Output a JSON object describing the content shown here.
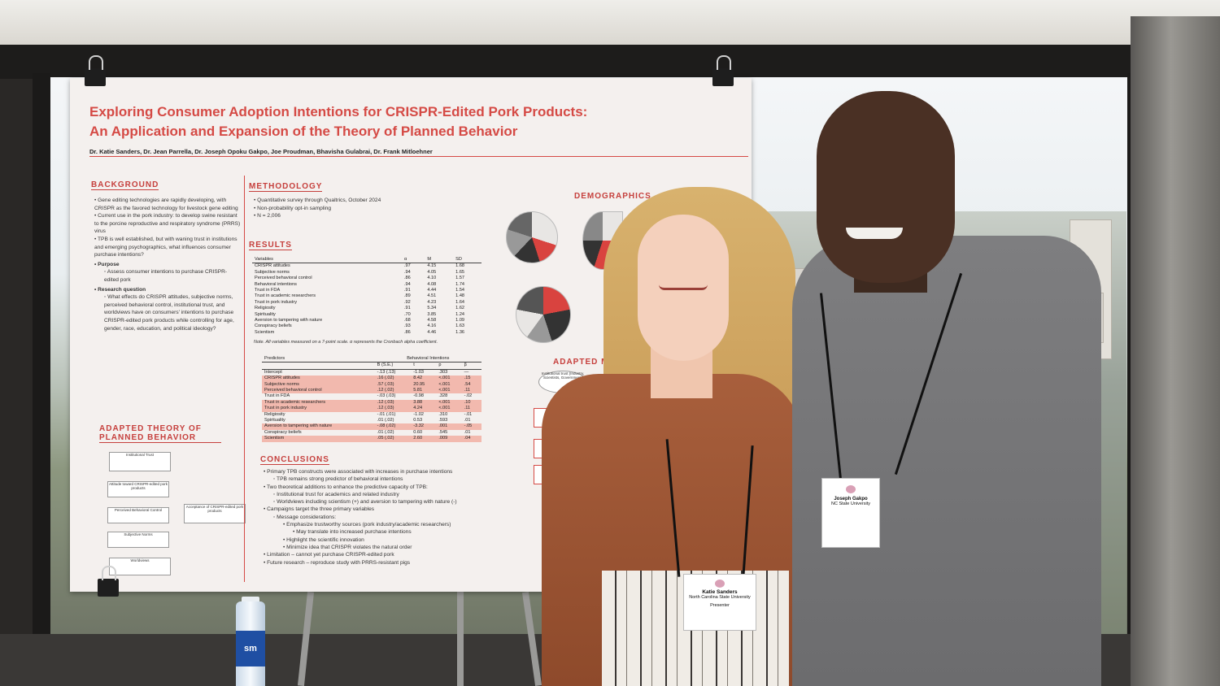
{
  "poster": {
    "title_line1": "Exploring Consumer Adoption Intentions for CRISPR-Edited Pork Products:",
    "title_line2": "An Application and Expansion of the Theory of Planned Behavior",
    "authors": "Dr. Katie Sanders, Dr. Jean Parrella, Dr. Joseph Opoku Gakpo, Joe Proudman, Bhavisha Gulabrai, Dr. Frank Mitloehner",
    "background": {
      "heading": "BACKGROUND",
      "b1": "• Gene editing technologies are rapidly developing, with CRISPR as the favored technology for livestock gene editing",
      "b2": "• Current use in the pork industry: to develop swine resistant to the porcine reproductive and respiratory syndrome (PRRS) virus",
      "b3": "• TPB is well established, but with waning trust in institutions and emerging psychographics, what influences consumer purchase intentions?",
      "purpose_label": "• Purpose",
      "purpose": "◦ Assess consumer intentions to purchase CRISPR-edited pork",
      "rq_label": "• Research question",
      "rq": "◦ What effects do CRISPR attitudes, subjective norms, perceived behavioral control, institutional trust, and worldviews have on consumers' intentions to purchase CRISPR-edited pork products while controlling for age, gender, race, education, and political ideology?"
    },
    "model_heading": "ADAPTED THEORY OF PLANNED BEHAVIOR",
    "model_boxes": [
      "Institutional Trust",
      "Attitude toward CRISPR-edited pork products",
      "Perceived Behavioral Control",
      "Subjective Norms",
      "Worldviews",
      "Acceptance of CRISPR-edited pork products"
    ],
    "methodology": {
      "heading": "METHODOLOGY",
      "b1": "• Quantitative survey through Qualtrics, October 2024",
      "b2": "• Non-probability opt-in sampling",
      "b3": "• N = 2,006"
    },
    "results_heading": "RESULTS",
    "table1": {
      "headers": [
        "Variables",
        "α",
        "M",
        "SD"
      ],
      "rows": [
        [
          "CRISPR attitudes",
          ".97",
          "4.15",
          "1.68"
        ],
        [
          "Subjective norms",
          ".94",
          "4.05",
          "1.65"
        ],
        [
          "Perceived behavioral control",
          ".86",
          "4.10",
          "1.57"
        ],
        [
          "Behavioral intentions",
          ".94",
          "4.08",
          "1.74"
        ],
        [
          "Trust in FDA",
          ".91",
          "4.44",
          "1.54"
        ],
        [
          "Trust in academic researchers",
          ".89",
          "4.51",
          "1.48"
        ],
        [
          "Trust in pork industry",
          ".92",
          "4.23",
          "1.64"
        ],
        [
          "Religiosity",
          ".91",
          "5.34",
          "1.62"
        ],
        [
          "Spirituality",
          ".70",
          "3.85",
          "1.24"
        ],
        [
          "Aversion to tampering with nature",
          ".68",
          "4.58",
          "1.09"
        ],
        [
          "Conspiracy beliefs",
          ".93",
          "4.16",
          "1.63"
        ],
        [
          "Scientism",
          ".86",
          "4.46",
          "1.36"
        ]
      ],
      "note": "Note. All variables measured on a 7-point scale. α represents the Cronbach alpha coefficient."
    },
    "table2": {
      "header_left": "Predictors",
      "header_right": "Behavioral Intentions",
      "subheaders": [
        "B (S.E.)",
        "t",
        "p",
        "β"
      ],
      "rows": [
        [
          "Intercept",
          "-.13 (.13)",
          "-1.03",
          ".303",
          "—"
        ],
        [
          "CRISPR attitudes",
          ".16 (.02)",
          "8.42",
          "<.001",
          ".15"
        ],
        [
          "Subjective norms",
          ".57 (.03)",
          "20.95",
          "<.001",
          ".54"
        ],
        [
          "Perceived behavioral control",
          ".12 (.02)",
          "5.81",
          "<.001",
          ".11"
        ],
        [
          "Trust in FDA",
          "-.03 (.03)",
          "-0.98",
          ".328",
          "-.02"
        ],
        [
          "Trust in academic researchers",
          ".12 (.03)",
          "3.88",
          "<.001",
          ".10"
        ],
        [
          "Trust in pork industry",
          ".12 (.03)",
          "4.24",
          "<.001",
          ".11"
        ],
        [
          "Religiosity",
          "-.01 (.01)",
          "-1.02",
          ".310",
          "-.01"
        ],
        [
          "Spirituality",
          ".01 (.02)",
          "0.53",
          ".593",
          ".01"
        ],
        [
          "Aversion to tampering with nature",
          "-.08 (.02)",
          "-3.32",
          ".001",
          "-.05"
        ],
        [
          "Conspiracy beliefs",
          ".01 (.02)",
          "0.60",
          ".545",
          ".01"
        ],
        [
          "Scientism",
          ".05 (.02)",
          "2.60",
          ".009",
          ".04"
        ]
      ]
    },
    "conclusions": {
      "heading": "CONCLUSIONS",
      "lines": [
        "• Primary TPB constructs were associated with increases in purchase intentions",
        "◦ TPB remains strong predictor of behavioral intentions",
        "• Two theoretical additions to enhance the predictive capacity of TPB:",
        "◦ Institutional trust for academics and related industry",
        "◦ Worldviews including scientism (+) and aversion to tampering with nature (-)",
        "• Campaigns target the three primary variables",
        "◦ Message considerations:",
        "• Emphasize trustworthy sources (pork industry/academic researchers)",
        "• May translate into increased purchase intentions",
        "• Highlight the scientific innovation",
        "• Minimize idea that CRISPR violates the natural order",
        "• Limitation – cannot yet purchase CRISPR-edited pork",
        "• Future research – reproduce study with PRRS-resistant pigs"
      ]
    },
    "demographics_heading": "DEMOGRAPHICS",
    "adapted_heading": "ADAPTED M",
    "adapted_box": "Institutional trust (Industry, Scientists, Government)"
  },
  "badges": {
    "left": {
      "name": "Katie Sanders",
      "org": "North Carolina State University",
      "role": "Presenter"
    },
    "right": {
      "name": "Joseph Gakpo",
      "org": "NC State University",
      "role": ""
    }
  },
  "bottle_label": "sm",
  "colors": {
    "poster_accent": "#d54a45",
    "poster_bg": "#f4f0ee"
  }
}
